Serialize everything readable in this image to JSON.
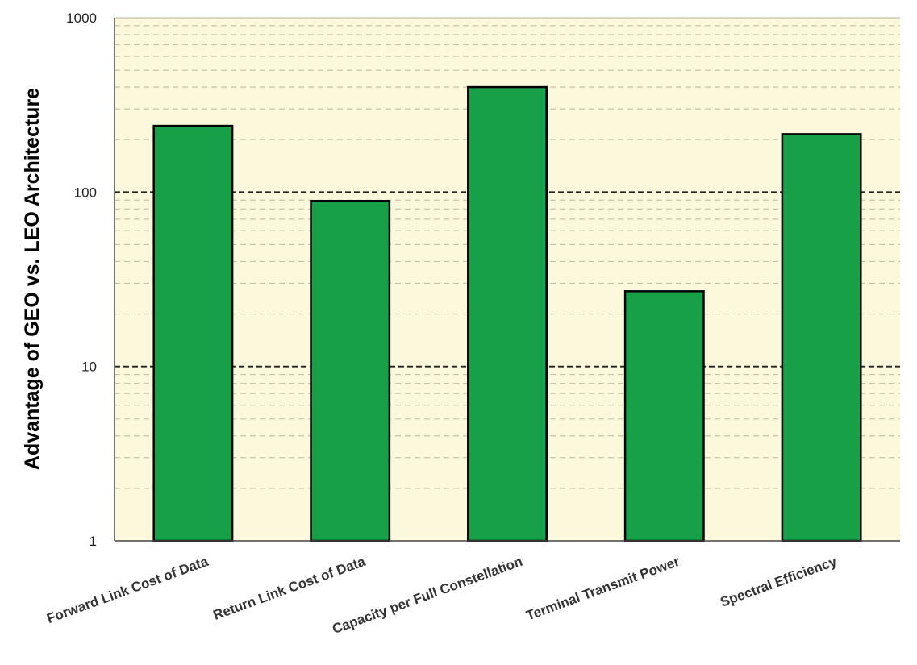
{
  "chart_data": {
    "type": "bar",
    "title": "",
    "xlabel": "",
    "ylabel": "Advantage of GEO vs. LEO Architecture",
    "yscale": "log",
    "ylim": [
      1,
      1000
    ],
    "y_ticks": [
      1,
      10,
      100,
      1000
    ],
    "y_tick_labels": [
      "1",
      "10",
      "100",
      "1000"
    ],
    "categories": [
      "Forward Link Cost of Data",
      "Return Link Cost of Data",
      "Capacity per Full Constellation",
      "Terminal Transmit Power",
      "Spectral Efficiency"
    ],
    "values": [
      240,
      89,
      400,
      27,
      215
    ],
    "grid": {
      "major": "dashed",
      "minor": "dashed"
    },
    "colors": {
      "bar_fill": "#18a049",
      "bar_stroke": "#000000",
      "plot_background": "#fcf8dc",
      "major_grid": "#222222",
      "minor_grid": "#c6c2a8"
    }
  }
}
